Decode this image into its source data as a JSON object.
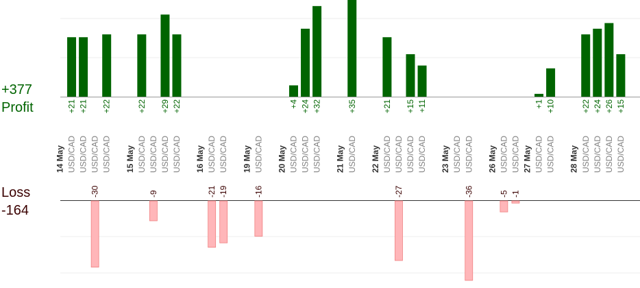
{
  "chart_data": {
    "type": "bar",
    "profit": {
      "total_label": "+377",
      "kind_label": "Profit",
      "color": "#006400",
      "label_color": "#006400",
      "ylim": [
        0,
        35
      ],
      "bars": [
        {
          "slot": 1,
          "value": 21,
          "label": "+21"
        },
        {
          "slot": 2,
          "value": 21,
          "label": "+21"
        },
        {
          "slot": 4,
          "value": 22,
          "label": "+22"
        },
        {
          "slot": 7,
          "value": 22,
          "label": "+22"
        },
        {
          "slot": 9,
          "value": 29,
          "label": "+29"
        },
        {
          "slot": 10,
          "value": 22,
          "label": "+22"
        },
        {
          "slot": 20,
          "value": 4,
          "label": "+4"
        },
        {
          "slot": 21,
          "value": 24,
          "label": "+24"
        },
        {
          "slot": 22,
          "value": 32,
          "label": "+32"
        },
        {
          "slot": 25,
          "value": 35,
          "label": "+35"
        },
        {
          "slot": 28,
          "value": 21,
          "label": "+21"
        },
        {
          "slot": 30,
          "value": 15,
          "label": "+15"
        },
        {
          "slot": 31,
          "value": 11,
          "label": "+11"
        },
        {
          "slot": 41,
          "value": 1,
          "label": "+1"
        },
        {
          "slot": 42,
          "value": 10,
          "label": "+10"
        },
        {
          "slot": 45,
          "value": 22,
          "label": "+22"
        },
        {
          "slot": 46,
          "value": 24,
          "label": "+24"
        },
        {
          "slot": 47,
          "value": 26,
          "label": "+26"
        },
        {
          "slot": 48,
          "value": 15,
          "label": "+15"
        }
      ]
    },
    "loss": {
      "total_label": "-164",
      "kind_label": "Loss",
      "color": "#ffb6b9",
      "stroke": "#f08080",
      "label_color": "#3a0000",
      "ylim": [
        -36,
        0
      ],
      "bars": [
        {
          "slot": 3,
          "value": -30,
          "label": "-30"
        },
        {
          "slot": 8,
          "value": -9,
          "label": "-9"
        },
        {
          "slot": 13,
          "value": -21,
          "label": "-21"
        },
        {
          "slot": 14,
          "value": -19,
          "label": "-19"
        },
        {
          "slot": 17,
          "value": -16,
          "label": "-16"
        },
        {
          "slot": 29,
          "value": -27,
          "label": "-27"
        },
        {
          "slot": 35,
          "value": -36,
          "label": "-36"
        },
        {
          "slot": 38,
          "value": -5,
          "label": "-5"
        },
        {
          "slot": 39,
          "value": -1,
          "label": "-1"
        }
      ]
    },
    "x_labels": [
      {
        "slot": 0,
        "text": "14 May",
        "kind": "date"
      },
      {
        "slot": 1,
        "text": "USD/CAD",
        "kind": "pair"
      },
      {
        "slot": 2,
        "text": "USD/CAD",
        "kind": "pair"
      },
      {
        "slot": 3,
        "text": "USD/CAD",
        "kind": "pair"
      },
      {
        "slot": 4,
        "text": "USD/CAD",
        "kind": "pair"
      },
      {
        "slot": 6,
        "text": "15 May",
        "kind": "date"
      },
      {
        "slot": 7,
        "text": "USD/CAD",
        "kind": "pair"
      },
      {
        "slot": 8,
        "text": "USD/CAD",
        "kind": "pair"
      },
      {
        "slot": 9,
        "text": "USD/CAD",
        "kind": "pair"
      },
      {
        "slot": 10,
        "text": "USD/CAD",
        "kind": "pair"
      },
      {
        "slot": 12,
        "text": "16 May",
        "kind": "date"
      },
      {
        "slot": 13,
        "text": "USD/CAD",
        "kind": "pair"
      },
      {
        "slot": 14,
        "text": "USD/CAD",
        "kind": "pair"
      },
      {
        "slot": 16,
        "text": "19 May",
        "kind": "date"
      },
      {
        "slot": 17,
        "text": "USD/CAD",
        "kind": "pair"
      },
      {
        "slot": 19,
        "text": "20 May",
        "kind": "date"
      },
      {
        "slot": 20,
        "text": "USD/CAD",
        "kind": "pair"
      },
      {
        "slot": 21,
        "text": "USD/CAD",
        "kind": "pair"
      },
      {
        "slot": 22,
        "text": "USD/CAD",
        "kind": "pair"
      },
      {
        "slot": 24,
        "text": "21 May",
        "kind": "date"
      },
      {
        "slot": 25,
        "text": "USD/CAD",
        "kind": "pair"
      },
      {
        "slot": 27,
        "text": "22 May",
        "kind": "date"
      },
      {
        "slot": 28,
        "text": "USD/CAD",
        "kind": "pair"
      },
      {
        "slot": 29,
        "text": "USD/CAD",
        "kind": "pair"
      },
      {
        "slot": 30,
        "text": "USD/CAD",
        "kind": "pair"
      },
      {
        "slot": 31,
        "text": "USD/CAD",
        "kind": "pair"
      },
      {
        "slot": 33,
        "text": "23 May",
        "kind": "date"
      },
      {
        "slot": 34,
        "text": "USD/CAD",
        "kind": "pair"
      },
      {
        "slot": 35,
        "text": "USD/CAD",
        "kind": "pair"
      },
      {
        "slot": 37,
        "text": "26 May",
        "kind": "date"
      },
      {
        "slot": 38,
        "text": "USD/CAD",
        "kind": "pair"
      },
      {
        "slot": 39,
        "text": "USD/CAD",
        "kind": "pair"
      },
      {
        "slot": 40,
        "text": "27 May",
        "kind": "date"
      },
      {
        "slot": 41,
        "text": "USD/CAD",
        "kind": "pair"
      },
      {
        "slot": 42,
        "text": "USD/CAD",
        "kind": "pair"
      },
      {
        "slot": 44,
        "text": "28 May",
        "kind": "date"
      },
      {
        "slot": 45,
        "text": "USD/CAD",
        "kind": "pair"
      },
      {
        "slot": 46,
        "text": "USD/CAD",
        "kind": "pair"
      },
      {
        "slot": 47,
        "text": "USD/CAD",
        "kind": "pair"
      },
      {
        "slot": 48,
        "text": "USD/CAD",
        "kind": "pair"
      }
    ],
    "grid": true,
    "date_label_color": "#333333",
    "pair_label_color": "#808080",
    "grid_color": "#eeeeee",
    "axis_color": "#999999"
  }
}
